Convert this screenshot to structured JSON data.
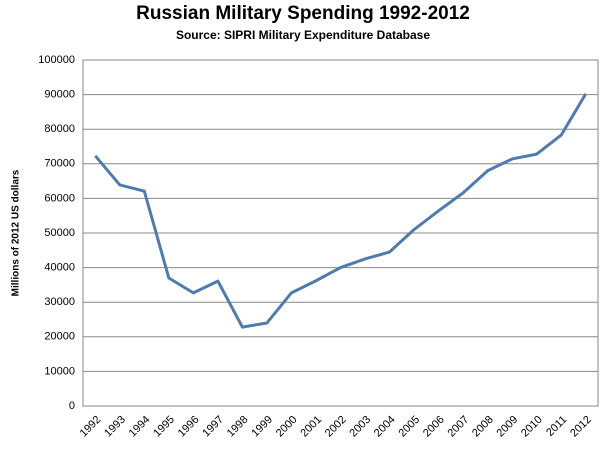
{
  "chart_data": {
    "type": "line",
    "title": "Russian Military Spending 1992-2012",
    "subtitle": "Source: SIPRI Military Expenditure Database",
    "y_label": "Millions of 2012 US dollars",
    "categories": [
      "1992",
      "1993",
      "1994",
      "1995",
      "1996",
      "1997",
      "1998",
      "1999",
      "2000",
      "2001",
      "2002",
      "2003",
      "2004",
      "2005",
      "2006",
      "2007",
      "2008",
      "2009",
      "2010",
      "2011",
      "2012"
    ],
    "values": [
      72300,
      63900,
      62100,
      37000,
      32700,
      36100,
      22800,
      24000,
      32700,
      36200,
      40000,
      42500,
      44500,
      51000,
      56400,
      61600,
      68000,
      71400,
      72800,
      78300,
      90200
    ],
    "color": "#4f7cac",
    "ylim": [
      0,
      100000
    ],
    "yticks": [
      0,
      10000,
      20000,
      30000,
      40000,
      50000,
      60000,
      70000,
      80000,
      90000,
      100000
    ],
    "grid": true
  }
}
